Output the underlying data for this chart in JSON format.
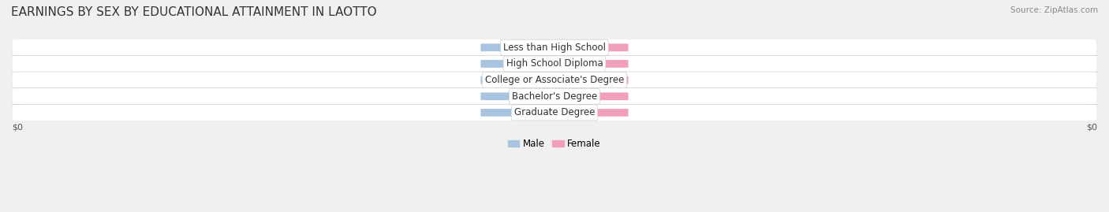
{
  "title": "EARNINGS BY SEX BY EDUCATIONAL ATTAINMENT IN LAOTTO",
  "source": "Source: ZipAtlas.com",
  "categories": [
    "Less than High School",
    "High School Diploma",
    "College or Associate's Degree",
    "Bachelor's Degree",
    "Graduate Degree"
  ],
  "male_values": [
    0,
    0,
    0,
    0,
    0
  ],
  "female_values": [
    0,
    0,
    0,
    0,
    0
  ],
  "male_color": "#a8c4e0",
  "female_color": "#f0a0b8",
  "background_color": "#f0f0f0",
  "title_fontsize": 11,
  "legend_male": "Male",
  "legend_female": "Female",
  "bar_height": 0.55,
  "x_axis_label_left": "$0",
  "x_axis_label_right": "$0"
}
